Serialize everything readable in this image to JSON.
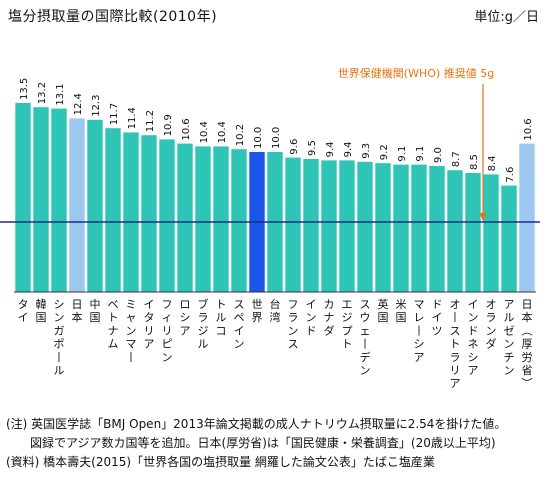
{
  "header": {
    "title": "塩分摂取量の国際比較(2010年)",
    "unit": "単位:g／日"
  },
  "annotation": {
    "who_label": "世界保健機関(WHO) 推奨値 5g",
    "who_value": 5,
    "color": "#e8730c"
  },
  "chart_data": {
    "type": "bar",
    "title": "塩分摂取量の国際比較(2010年)",
    "ylabel": "単位:g／日",
    "ylim": [
      0,
      14.5
    ],
    "categories": [
      "タイ",
      "韓国",
      "シンガポール",
      "日本",
      "中国",
      "ベトナム",
      "ミャンマー",
      "イタリア",
      "フィリピン",
      "ロシア",
      "ブラジル",
      "トルコ",
      "スペイン",
      "世界",
      "台湾",
      "フランス",
      "インド",
      "カナダ",
      "エジプト",
      "スウェーデン",
      "英国",
      "米国",
      "マレーシア",
      "ドイツ",
      "オーストラリア",
      "インドネシア",
      "オランダ",
      "アルゼンチン",
      "日本(厚労省)"
    ],
    "value_labels": [
      "13.5",
      "13.2",
      "13.1",
      "12.4",
      "12.3",
      "11.7",
      "11.4",
      "11.2",
      "10.9",
      "10.6",
      "10.4",
      "10.4",
      "10.2",
      "10.0",
      "10.0",
      "9.6",
      "9.5",
      "9.4",
      "9.4",
      "9.3",
      "9.2",
      "9.1",
      "9.1",
      "9.0",
      "8.7",
      "8.5",
      "8.4",
      "7.6",
      "10.6"
    ],
    "values": [
      13.5,
      13.2,
      13.1,
      12.4,
      12.3,
      11.7,
      11.4,
      11.2,
      10.9,
      10.6,
      10.4,
      10.4,
      10.2,
      10.0,
      10.0,
      9.6,
      9.5,
      9.4,
      9.4,
      9.3,
      9.2,
      9.1,
      9.1,
      9.0,
      8.7,
      8.5,
      8.4,
      7.6,
      10.6
    ],
    "reference_line": {
      "label": "世界保健機関(WHO) 推奨値 5g",
      "value": 5
    },
    "colors": {
      "default": "#2ec4b6",
      "japan": "#9cc8f0",
      "world": "#1a56e8",
      "reference": "#1c2a8c",
      "arrow": "#e8730c"
    },
    "highlight": {
      "japan": [
        3,
        28
      ],
      "world": [
        13
      ]
    }
  },
  "notes": {
    "line1": "(注) 英国医学誌「BMJ Open」2013年論文掲載の成人ナトリウム摂取量に2.54を掛けた値。",
    "line2": "　　図録でアジア数カ国等を追加。日本(厚労省)は「国民健康・栄養調査」(20歳以上平均)",
    "line3": "(資料) 橋本壽夫(2015)「世界各国の塩摂取量 網羅した論文公表」たばこ塩産業"
  }
}
